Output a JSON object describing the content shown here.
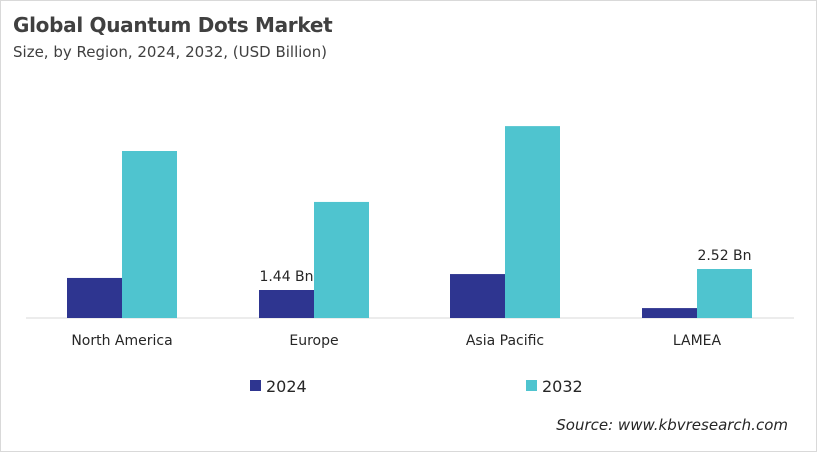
{
  "chart_data": {
    "type": "bar",
    "title": "Global Quantum Dots Market",
    "subtitle": "Size, by Region, 2024, 2032, (USD Billion)",
    "categories": [
      "North America",
      "Europe",
      "Asia Pacific",
      "LAMEA"
    ],
    "series": [
      {
        "name": "2024",
        "color": "#2E3590",
        "values": [
          2.06,
          1.44,
          2.26,
          0.51
        ]
      },
      {
        "name": "2032",
        "color": "#4FC4CF",
        "values": [
          8.59,
          5.97,
          9.87,
          2.52
        ]
      }
    ],
    "data_labels": [
      {
        "series": "2024",
        "category": "Europe",
        "text": "1.44 Bn"
      },
      {
        "series": "2032",
        "category": "LAMEA",
        "text": "2.52 Bn"
      }
    ],
    "ylim": [
      0,
      11
    ],
    "grid": false,
    "legend_position": "bottom",
    "source": "Source: www.kbvresearch.com"
  }
}
